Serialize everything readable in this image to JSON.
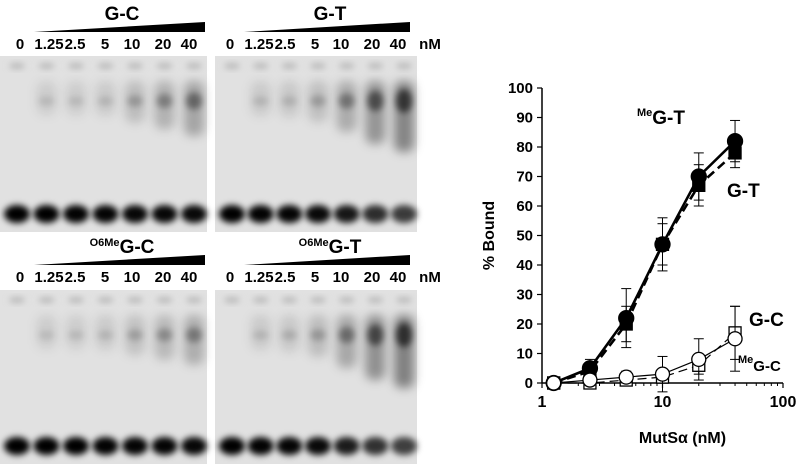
{
  "gel_panels": [
    {
      "label_prefix": "",
      "label": "G-C",
      "lanes": [
        "0",
        "1.25",
        "2.5",
        "5",
        "10",
        "20",
        "40"
      ],
      "unit": "",
      "bound_signal": [
        0,
        0.03,
        0.04,
        0.05,
        0.22,
        0.38,
        0.55
      ],
      "free_signal": [
        1,
        1,
        0.98,
        0.96,
        0.93,
        0.92,
        0.9
      ]
    },
    {
      "label_prefix": "",
      "label": "G-T",
      "lanes": [
        "0",
        "1.25",
        "2.5",
        "5",
        "10",
        "20",
        "40"
      ],
      "unit": "nM",
      "bound_signal": [
        0,
        0.05,
        0.08,
        0.2,
        0.45,
        0.75,
        0.95
      ],
      "free_signal": [
        1,
        0.98,
        0.95,
        0.9,
        0.75,
        0.5,
        0.35
      ]
    },
    {
      "label_prefix": "O6Me",
      "label": "G-C",
      "lanes": [
        "0",
        "1.25",
        "2.5",
        "5",
        "10",
        "20",
        "40"
      ],
      "unit": "",
      "bound_signal": [
        0,
        0.02,
        0.03,
        0.05,
        0.18,
        0.3,
        0.42
      ],
      "free_signal": [
        1,
        1,
        1,
        0.98,
        0.96,
        0.95,
        0.93
      ]
    },
    {
      "label_prefix": "O6Me",
      "label": "G-T",
      "lanes": [
        "0",
        "1.25",
        "2.5",
        "5",
        "10",
        "20",
        "40"
      ],
      "unit": "nM",
      "bound_signal": [
        0,
        0.05,
        0.1,
        0.22,
        0.5,
        0.8,
        1.0
      ],
      "free_signal": [
        1,
        0.98,
        0.96,
        0.9,
        0.7,
        0.45,
        0.3
      ]
    }
  ],
  "chart_data": {
    "type": "scatter",
    "title": "",
    "xlabel": "MutSα (nM)",
    "ylabel": "% Bound",
    "xscale": "log",
    "xlim": [
      1,
      100
    ],
    "ylim": [
      0,
      100
    ],
    "xticks": [
      1,
      10,
      100
    ],
    "yticks": [
      0,
      10,
      20,
      30,
      40,
      50,
      60,
      70,
      80,
      90,
      100
    ],
    "grid": false,
    "series": [
      {
        "name": "G-T",
        "prefix": "",
        "marker": "filled-square",
        "line": "dashed",
        "x": [
          1.25,
          2.5,
          5,
          10,
          20,
          40
        ],
        "y": [
          0,
          4,
          20,
          47,
          67,
          78
        ],
        "err": [
          1,
          3,
          6,
          7,
          7,
          5
        ]
      },
      {
        "name": "G-T",
        "prefix": "Me",
        "marker": "filled-circle",
        "line": "solid",
        "x": [
          1.25,
          2.5,
          5,
          10,
          20,
          40
        ],
        "y": [
          0,
          5,
          22,
          47,
          70,
          82
        ],
        "err": [
          1,
          3,
          10,
          9,
          8,
          7
        ]
      },
      {
        "name": "G-C",
        "prefix": "",
        "marker": "open-square",
        "line": "dashed",
        "x": [
          1.25,
          2.5,
          5,
          10,
          20,
          40
        ],
        "y": [
          0,
          0,
          1,
          2,
          6,
          17
        ],
        "err": [
          1,
          1,
          1,
          2,
          3,
          9
        ]
      },
      {
        "name": "G-C",
        "prefix": "Me",
        "marker": "open-circle",
        "line": "solid",
        "x": [
          1.25,
          2.5,
          5,
          10,
          20,
          40
        ],
        "y": [
          0,
          1,
          2,
          3,
          8,
          15
        ],
        "err": [
          1,
          1,
          2,
          6,
          7,
          11
        ]
      }
    ]
  }
}
